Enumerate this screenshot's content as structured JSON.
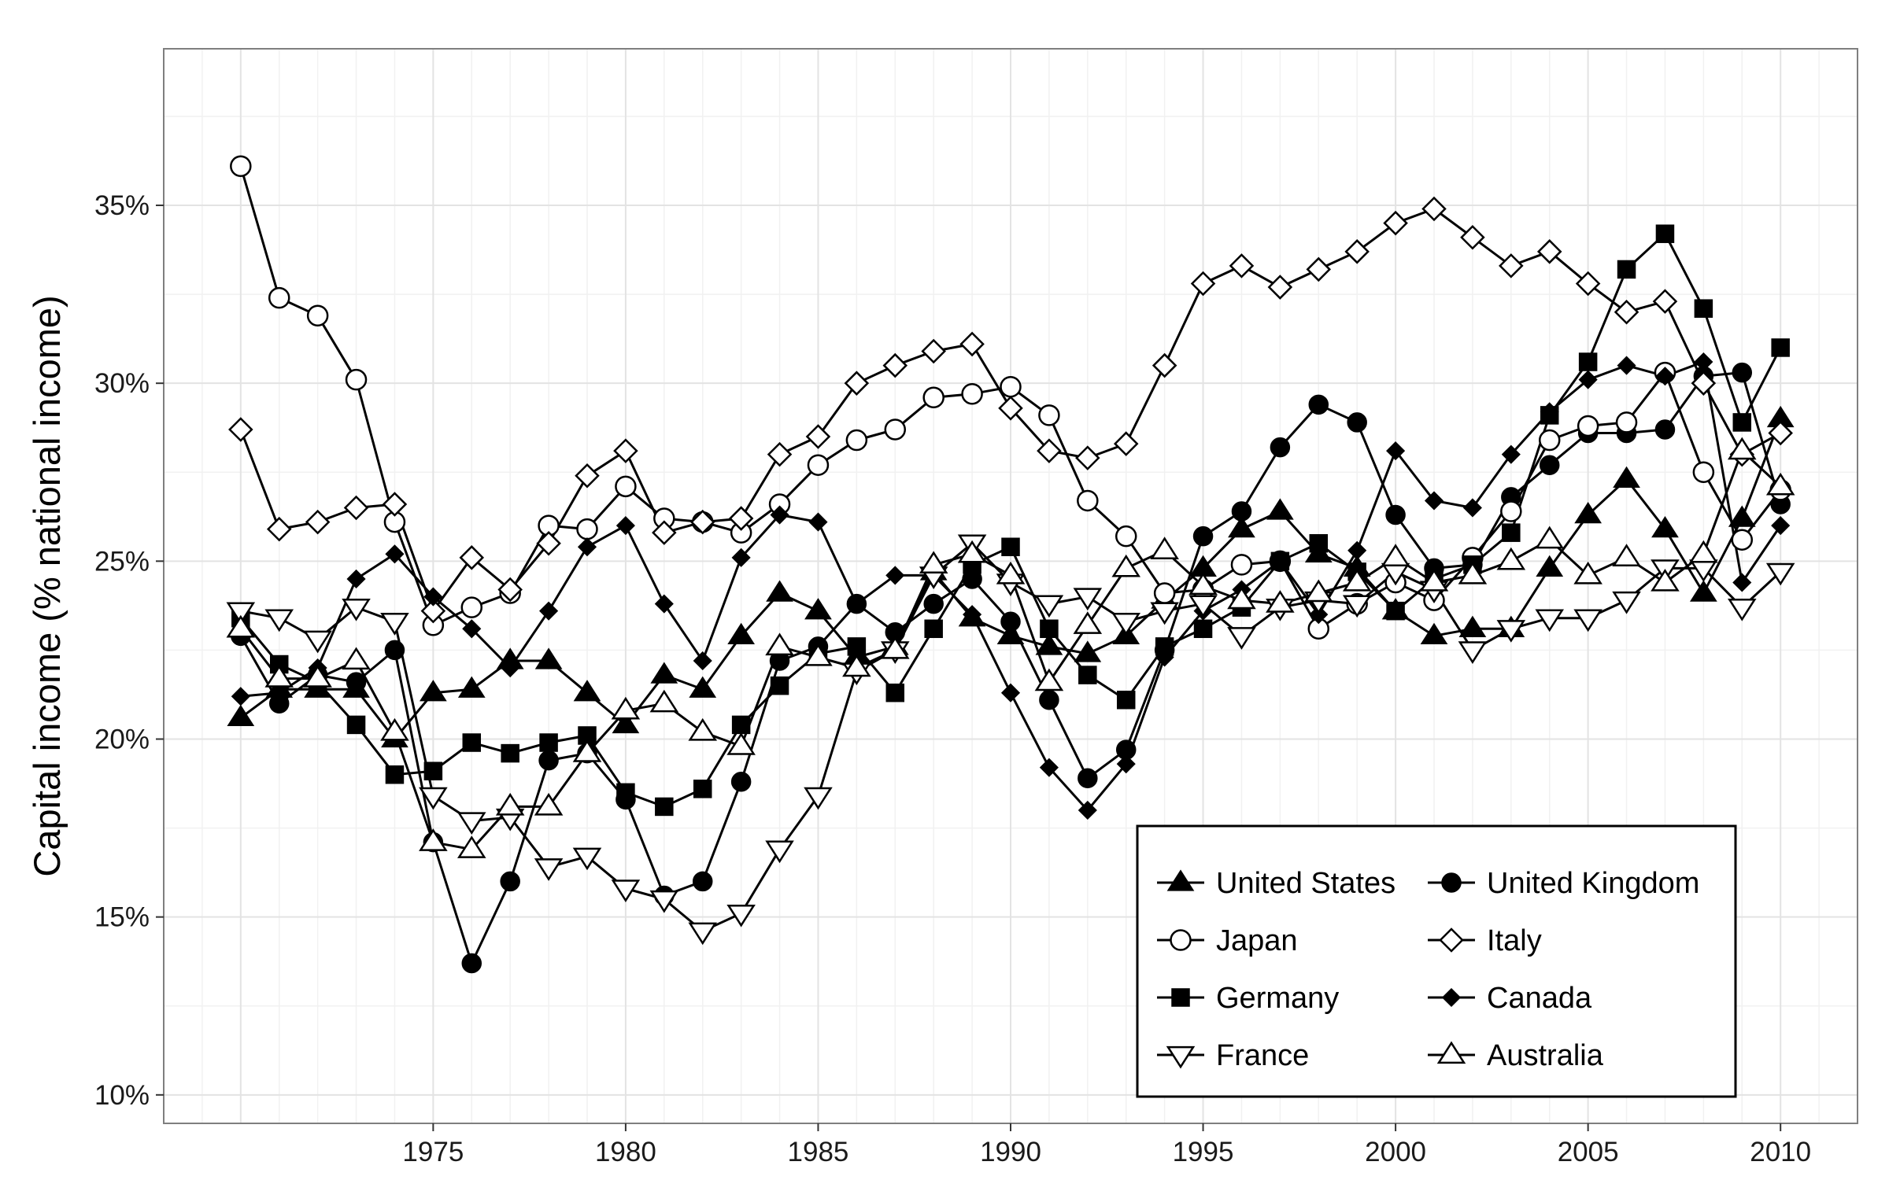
{
  "chart_data": {
    "type": "line",
    "title": "",
    "xlabel": "",
    "ylabel": "Capital income (% national income)",
    "x_ticks": [
      1975,
      1980,
      1985,
      1990,
      1995,
      2000,
      2005,
      2010
    ],
    "x_tick_labels": [
      "1975",
      "1980",
      "1985",
      "1990",
      "1995",
      "2000",
      "2005",
      "2010"
    ],
    "y_ticks": [
      10,
      15,
      20,
      25,
      30,
      35
    ],
    "y_tick_labels": [
      "10%",
      "15%",
      "20%",
      "25%",
      "30%",
      "35%"
    ],
    "xlim": [
      1968,
      2012
    ],
    "ylim": [
      9.2,
      39.4
    ],
    "grid": true,
    "legend_position": "bottom-right",
    "x": [
      1970,
      1971,
      1972,
      1973,
      1974,
      1975,
      1976,
      1977,
      1978,
      1979,
      1980,
      1981,
      1982,
      1983,
      1984,
      1985,
      1986,
      1987,
      1988,
      1989,
      1990,
      1991,
      1992,
      1993,
      1994,
      1995,
      1996,
      1997,
      1998,
      1999,
      2000,
      2001,
      2002,
      2003,
      2004,
      2005,
      2006,
      2007,
      2008,
      2009,
      2010
    ],
    "series": [
      {
        "name": "United States",
        "marker": "triangle-filled",
        "values": [
          20.6,
          21.4,
          21.4,
          21.4,
          20.0,
          21.3,
          21.4,
          22.2,
          22.2,
          21.3,
          20.4,
          21.8,
          21.4,
          22.9,
          24.1,
          23.6,
          22.3,
          22.6,
          24.7,
          23.4,
          22.9,
          22.6,
          22.4,
          22.9,
          23.9,
          24.8,
          25.9,
          26.4,
          25.2,
          24.8,
          23.6,
          22.9,
          23.1,
          23.1,
          24.8,
          26.3,
          27.3,
          25.9,
          24.1,
          26.2,
          29.0
        ]
      },
      {
        "name": "United Kingdom",
        "marker": "circle-filled",
        "values": [
          22.9,
          21.0,
          21.8,
          21.6,
          22.5,
          17.1,
          13.7,
          16.0,
          19.4,
          19.6,
          18.3,
          15.6,
          16.0,
          18.8,
          22.2,
          22.6,
          23.8,
          23.0,
          23.8,
          24.5,
          23.3,
          21.1,
          18.9,
          19.7,
          22.5,
          25.7,
          26.4,
          28.2,
          29.4,
          28.9,
          26.3,
          24.8,
          24.9,
          26.8,
          27.7,
          28.6,
          28.6,
          28.7,
          30.2,
          30.3,
          26.6
        ]
      },
      {
        "name": "Japan",
        "marker": "circle-open",
        "values": [
          36.1,
          32.4,
          31.9,
          30.1,
          26.1,
          23.2,
          23.7,
          24.1,
          26.0,
          25.9,
          27.1,
          26.2,
          26.1,
          25.8,
          26.6,
          27.7,
          28.4,
          28.7,
          29.6,
          29.7,
          29.9,
          29.1,
          26.7,
          25.7,
          24.1,
          24.2,
          24.9,
          25.0,
          23.1,
          23.8,
          24.4,
          23.9,
          25.1,
          26.4,
          28.4,
          28.8,
          28.9,
          30.3,
          27.5,
          25.6,
          27.0
        ]
      },
      {
        "name": "Italy",
        "marker": "diamond-open",
        "values": [
          28.7,
          25.9,
          26.1,
          26.5,
          26.6,
          23.6,
          25.1,
          24.2,
          25.5,
          27.4,
          28.1,
          25.8,
          26.1,
          26.2,
          28.0,
          28.5,
          30.0,
          30.5,
          30.9,
          31.1,
          29.3,
          28.1,
          27.9,
          28.3,
          30.5,
          32.8,
          33.3,
          32.7,
          33.2,
          33.7,
          34.5,
          34.9,
          34.1,
          33.3,
          33.7,
          32.8,
          32.0,
          32.3,
          30.0,
          28.0,
          28.6
        ]
      },
      {
        "name": "Germany",
        "marker": "square-filled",
        "values": [
          23.4,
          22.1,
          21.6,
          20.4,
          19.0,
          19.1,
          19.9,
          19.6,
          19.9,
          20.1,
          18.5,
          18.1,
          18.6,
          20.4,
          21.5,
          22.4,
          22.6,
          21.3,
          23.1,
          24.9,
          25.4,
          23.1,
          21.8,
          21.1,
          22.6,
          23.1,
          23.7,
          25.0,
          25.5,
          24.7,
          23.6,
          24.5,
          24.9,
          25.8,
          29.1,
          30.6,
          33.2,
          34.2,
          32.1,
          28.9,
          31.0
        ]
      },
      {
        "name": "Canada",
        "marker": "diamond-filled",
        "values": [
          21.2,
          21.3,
          22.0,
          24.5,
          25.2,
          24.0,
          23.1,
          22.0,
          23.6,
          25.4,
          26.0,
          23.8,
          22.2,
          25.1,
          26.3,
          26.1,
          23.8,
          24.6,
          24.6,
          23.5,
          21.3,
          19.2,
          18.0,
          19.3,
          22.3,
          23.6,
          24.2,
          25.0,
          23.5,
          25.3,
          28.1,
          26.7,
          26.5,
          28.0,
          29.2,
          30.1,
          30.5,
          30.2,
          30.6,
          24.4,
          26.0
        ]
      },
      {
        "name": "France",
        "marker": "triangle-down-open",
        "values": [
          23.6,
          23.4,
          22.8,
          23.7,
          23.3,
          18.4,
          17.7,
          17.8,
          16.4,
          16.7,
          15.8,
          15.5,
          14.6,
          15.1,
          16.9,
          18.4,
          21.9,
          22.5,
          24.6,
          25.5,
          24.4,
          23.8,
          24.0,
          23.3,
          23.6,
          23.8,
          22.9,
          23.7,
          23.9,
          23.8,
          24.7,
          24.2,
          22.5,
          23.1,
          23.4,
          23.4,
          23.9,
          24.8,
          24.8,
          23.7,
          24.7
        ]
      },
      {
        "name": "Australia",
        "marker": "triangle-open",
        "values": [
          23.1,
          21.7,
          21.7,
          22.2,
          20.2,
          17.1,
          16.9,
          18.1,
          18.1,
          19.6,
          20.8,
          21.0,
          20.2,
          19.8,
          22.6,
          22.3,
          22.0,
          22.5,
          24.9,
          25.2,
          24.6,
          21.6,
          23.2,
          24.8,
          25.3,
          24.3,
          23.9,
          23.8,
          24.1,
          24.4,
          25.1,
          24.4,
          24.6,
          25.0,
          25.6,
          24.6,
          25.1,
          24.4,
          25.2,
          28.1,
          27.1
        ]
      }
    ]
  }
}
